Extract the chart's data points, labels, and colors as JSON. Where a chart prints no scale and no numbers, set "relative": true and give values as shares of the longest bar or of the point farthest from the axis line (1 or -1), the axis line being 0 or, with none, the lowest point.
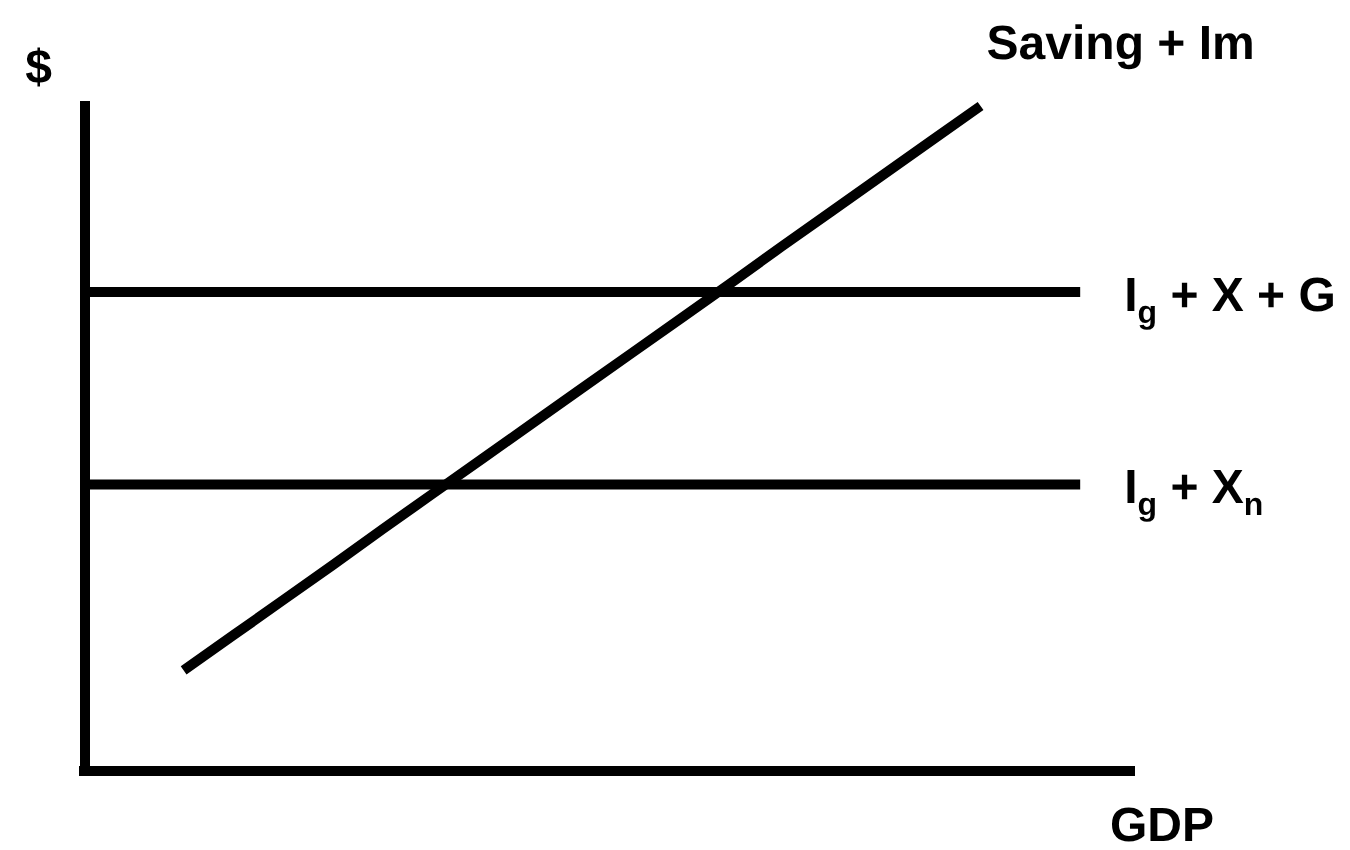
{
  "chart_data": {
    "type": "line",
    "relative": true,
    "xlabel": "GDP",
    "ylabel": "$",
    "categories": [
      null,
      null,
      null,
      null,
      null,
      null,
      null,
      null,
      null,
      null,
      null,
      null,
      null,
      null,
      null,
      null,
      null,
      null,
      null,
      null,
      null,
      null
    ],
    "series": [
      {
        "name": "Saving + Im",
        "color": "#000000",
        "values": [
          null,
          null,
          0.15,
          0.203,
          0.256,
          0.309,
          0.363,
          0.416,
          0.469,
          0.522,
          0.575,
          0.628,
          0.681,
          0.734,
          0.788,
          0.841,
          0.894,
          0.947,
          1,
          null,
          null,
          null
        ]
      },
      {
        "name": "I$_{g}$ + X + G",
        "color": "#000000",
        "values": [
          0.72,
          0.72,
          0.72,
          0.72,
          0.72,
          0.72,
          0.72,
          0.72,
          0.72,
          0.72,
          0.72,
          0.72,
          0.72,
          0.72,
          0.72,
          0.72,
          0.72,
          0.72,
          0.72,
          0.72,
          0.72,
          null
        ]
      },
      {
        "name": "I$_{g}$ + X$_{n}$",
        "color": "#000000",
        "values": [
          0.43,
          0.43,
          0.43,
          0.43,
          0.43,
          0.43,
          0.43,
          0.43,
          0.43,
          0.43,
          0.43,
          0.43,
          0.43,
          0.43,
          0.43,
          0.43,
          0.43,
          0.43,
          0.43,
          0.43,
          0.43,
          null
        ]
      }
    ]
  }
}
